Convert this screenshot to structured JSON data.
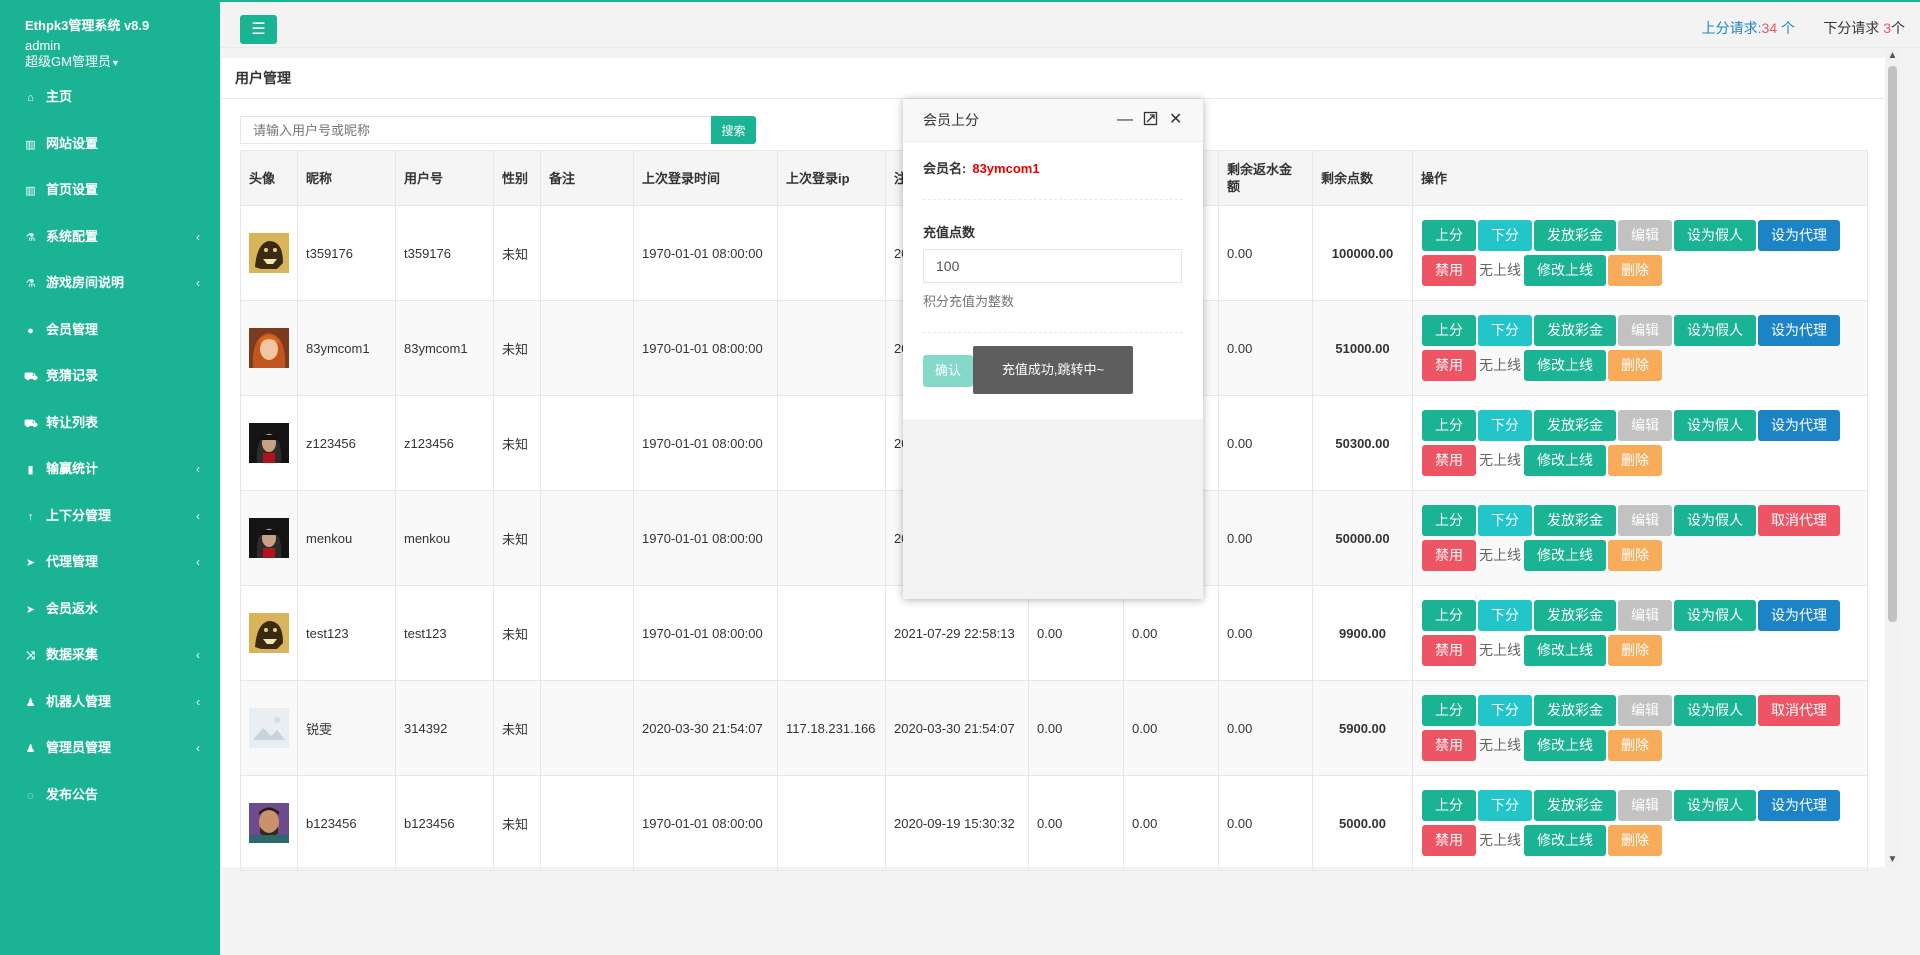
{
  "sidebar": {
    "title": "Ethpk3管理系统 v8.9",
    "user": "admin",
    "role": "超级GM管理员",
    "items": [
      {
        "label": "主页",
        "icon": "home-icon",
        "arrow": false
      },
      {
        "label": "网站设置",
        "icon": "columns-icon",
        "arrow": false
      },
      {
        "label": "首页设置",
        "icon": "columns-icon",
        "arrow": false
      },
      {
        "label": "系统配置",
        "icon": "flask-icon",
        "arrow": true
      },
      {
        "label": "游戏房间说明",
        "icon": "flask-icon",
        "arrow": true
      },
      {
        "label": "会员管理",
        "icon": "user-icon",
        "arrow": false
      },
      {
        "label": "竞猜记录",
        "icon": "car-icon",
        "arrow": false
      },
      {
        "label": "转让列表",
        "icon": "car-icon",
        "arrow": false
      },
      {
        "label": "输赢统计",
        "icon": "bar-chart-icon",
        "arrow": true
      },
      {
        "label": "上下分管理",
        "icon": "level-up-icon",
        "arrow": true
      },
      {
        "label": "代理管理",
        "icon": "paper-plane-icon",
        "arrow": true
      },
      {
        "label": "会员返水",
        "icon": "paper-plane-icon",
        "arrow": false
      },
      {
        "label": "数据采集",
        "icon": "random-icon",
        "arrow": true
      },
      {
        "label": "机器人管理",
        "icon": "male-icon",
        "arrow": true
      },
      {
        "label": "管理员管理",
        "icon": "male-icon",
        "arrow": true
      },
      {
        "label": "发布公告",
        "icon": "comment-icon",
        "arrow": false
      }
    ]
  },
  "topbar": {
    "up_label": "上分请求:",
    "up_count": "34",
    "up_unit": " 个",
    "down_label": "下分请求",
    "down_count": "3",
    "down_unit": "个"
  },
  "panel": {
    "title": "用户管理"
  },
  "search": {
    "placeholder": "请输入用户号或昵称",
    "button": "搜索"
  },
  "table": {
    "headers": [
      "头像",
      "昵称",
      "用户号",
      "性别",
      "备注",
      "上次登录时间",
      "上次登录ip",
      "注",
      "",
      "",
      "剩余返水金额",
      "剩余点数",
      "操作"
    ],
    "rows": [
      {
        "avatar": "bear",
        "nickname": "t359176",
        "uid": "t359176",
        "gender": "未知",
        "note": "",
        "last_login": "1970-01-01 08:00:00",
        "ip": "",
        "reg": "20",
        "c1": "",
        "c2": "",
        "rebate": "0.00",
        "points": "100000.00",
        "agent": "设为代理",
        "agent_color": "b"
      },
      {
        "avatar": "girl",
        "nickname": "83ymcom1",
        "uid": "83ymcom1",
        "gender": "未知",
        "note": "",
        "last_login": "1970-01-01 08:00:00",
        "ip": "",
        "reg": "20",
        "c1": "",
        "c2": "",
        "rebate": "0.00",
        "points": "51000.00",
        "agent": "设为代理",
        "agent_color": "b"
      },
      {
        "avatar": "dark",
        "nickname": "z123456",
        "uid": "z123456",
        "gender": "未知",
        "note": "",
        "last_login": "1970-01-01 08:00:00",
        "ip": "",
        "reg": "20",
        "c1": "",
        "c2": "",
        "rebate": "0.00",
        "points": "50300.00",
        "agent": "设为代理",
        "agent_color": "b"
      },
      {
        "avatar": "dark",
        "nickname": "menkou",
        "uid": "menkou",
        "gender": "未知",
        "note": "",
        "last_login": "1970-01-01 08:00:00",
        "ip": "",
        "reg": "20",
        "c1": "",
        "c2": "",
        "rebate": "0.00",
        "points": "50000.00",
        "agent": "取消代理",
        "agent_color": "r"
      },
      {
        "avatar": "bear",
        "nickname": "test123",
        "uid": "test123",
        "gender": "未知",
        "note": "",
        "last_login": "1970-01-01 08:00:00",
        "ip": "",
        "reg": "2021-07-29 22:58:13",
        "c1": "0.00",
        "c2": "0.00",
        "rebate": "0.00",
        "points": "9900.00",
        "agent": "设为代理",
        "agent_color": "b"
      },
      {
        "avatar": "placeholder",
        "nickname": "锐雯",
        "uid": "314392",
        "gender": "未知",
        "note": "",
        "last_login": "2020-03-30 21:54:07",
        "ip": "117.18.231.166",
        "reg": "2020-03-30 21:54:07",
        "c1": "0.00",
        "c2": "0.00",
        "rebate": "0.00",
        "points": "5900.00",
        "agent": "取消代理",
        "agent_color": "r"
      },
      {
        "avatar": "man",
        "nickname": "b123456",
        "uid": "b123456",
        "gender": "未知",
        "note": "",
        "last_login": "1970-01-01 08:00:00",
        "ip": "",
        "reg": "2020-09-19 15:30:32",
        "c1": "0.00",
        "c2": "0.00",
        "rebate": "0.00",
        "points": "5000.00",
        "agent": "设为代理",
        "agent_color": "b"
      }
    ],
    "actions": {
      "up": "上分",
      "down": "下分",
      "lottery": "发放彩金",
      "edit": "编辑",
      "fake": "设为假人",
      "ban": "禁用",
      "no_upline": "无上线",
      "change_upline": "修改上线",
      "delete": "删除"
    }
  },
  "modal": {
    "title": "会员上分",
    "member_label": "会员名:",
    "member_name": "83ymcom1",
    "points_label": "充值点数",
    "points_value": "100",
    "help": "积分充值为整数",
    "confirm": "确认"
  },
  "toast": "充值成功,跳转中~",
  "colors": {
    "primary": "#1ab394",
    "cyan": "#23c6c8",
    "blue": "#1c84c6",
    "red": "#ed5565",
    "orange": "#f8ac59",
    "gray": "#c2c2c2"
  }
}
